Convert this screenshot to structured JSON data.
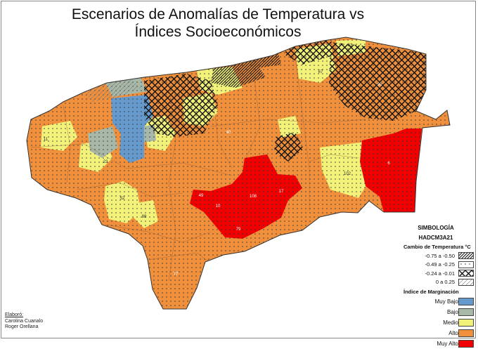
{
  "title": {
    "line1": "Escenarios de Anomalías de Temperatura vs",
    "line2": "Índices Socioeconómicos"
  },
  "legend": {
    "heading": "SIMBOLOGÍA",
    "model": "HADCM3A21",
    "temp_heading": "Cambio de Temperatura °C",
    "temp_classes": [
      {
        "label": "-0.75 a -0.50",
        "pattern": "dense-diagonal"
      },
      {
        "label": "-0.49 a -0.25",
        "pattern": "dots"
      },
      {
        "label": "-0.24 a -0.01",
        "pattern": "crosshatch"
      },
      {
        "label": "0 a 0.25",
        "pattern": "light-diagonal"
      }
    ],
    "marg_heading": "Índice de Marginación",
    "marg_classes": [
      {
        "label": "Muy Bajo",
        "color": "#6699cc"
      },
      {
        "label": "Bajo",
        "color": "#a8b8a8"
      },
      {
        "label": "Medio",
        "color": "#f2f27a"
      },
      {
        "label": "Alto",
        "color": "#f0903c"
      },
      {
        "label": "Muy Alto",
        "color": "#f00000"
      }
    ]
  },
  "credits": {
    "label": "Elaboró:",
    "authors": [
      "Carolina Cuanalo",
      "Roger Orellana"
    ]
  },
  "map_labels": [
    {
      "id": "label-50",
      "text": "50"
    },
    {
      "id": "label-61",
      "text": "61"
    },
    {
      "id": "label-67",
      "text": "67"
    },
    {
      "id": "label-108",
      "text": "108"
    },
    {
      "id": "label-102",
      "text": "102"
    },
    {
      "id": "label-10",
      "text": "10"
    },
    {
      "id": "label-49",
      "text": "49"
    },
    {
      "id": "label-79",
      "text": "79"
    },
    {
      "id": "label-17",
      "text": "17"
    },
    {
      "id": "label-11",
      "text": "11"
    },
    {
      "id": "label-23",
      "text": "23"
    },
    {
      "id": "label-40",
      "text": "40"
    },
    {
      "id": "label-52",
      "text": "52"
    },
    {
      "id": "label-88",
      "text": "88"
    },
    {
      "id": "label-6",
      "text": "6"
    },
    {
      "id": "label-77",
      "text": "77"
    }
  ]
}
